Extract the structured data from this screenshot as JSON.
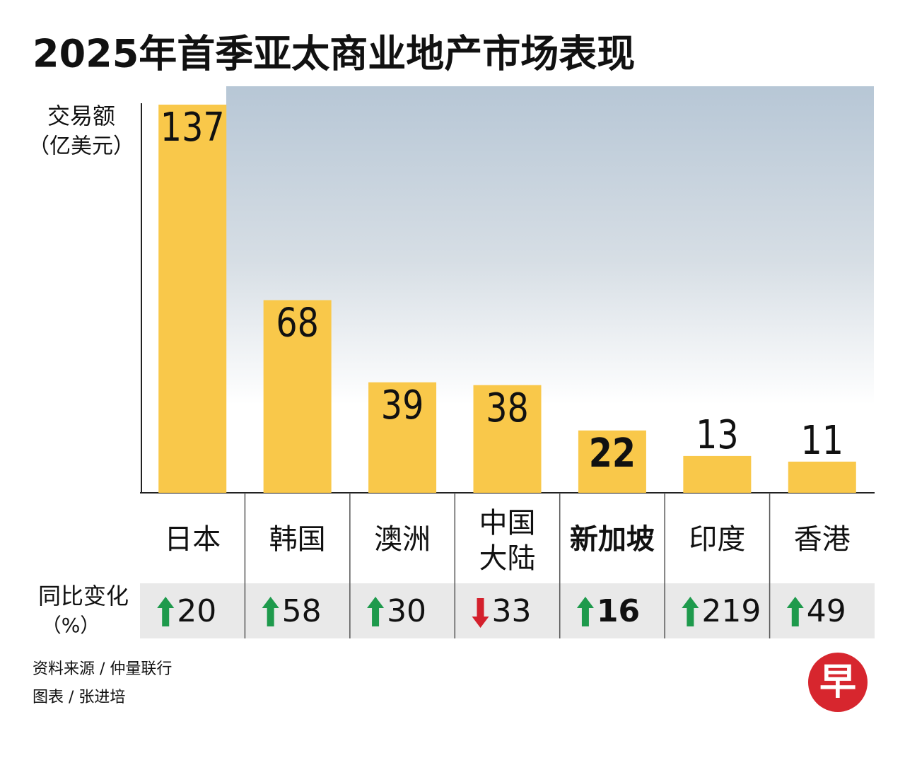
{
  "chart_data": {
    "type": "bar",
    "title": "2025年首季亚太商业地产市场表现",
    "y_label_lines": [
      "交易额",
      "（亿美元）"
    ],
    "categories": [
      "日本",
      "韩国",
      "澳洲",
      [
        "中国",
        "大陆"
      ],
      "新加坡",
      "印度",
      "香港"
    ],
    "values": [
      137,
      68,
      39,
      38,
      22,
      13,
      11
    ],
    "color": "#f9c84a",
    "highlight_index": 4,
    "ylim": [
      0,
      137
    ],
    "yoy_change": {
      "label_lines": [
        "同比变化",
        "（%）"
      ],
      "values": [
        20,
        58,
        30,
        -33,
        16,
        219,
        49
      ],
      "value_labels": [
        "20",
        "58",
        "30",
        "33",
        "16",
        "219",
        "49"
      ],
      "up_color": "#1e9a4c",
      "down_color": "#d4202c"
    },
    "source": "资料来源 / 仲量联行",
    "credit": "图表 / 张进培",
    "logo": "早"
  }
}
